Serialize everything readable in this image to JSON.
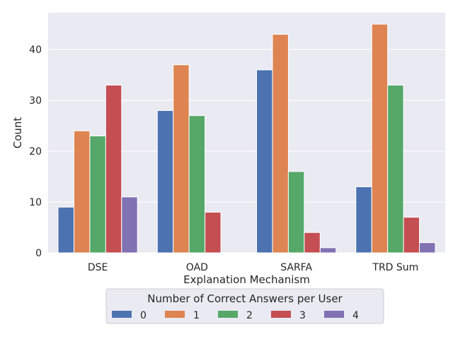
{
  "chart_data": {
    "type": "bar",
    "categories": [
      "DSE",
      "OAD",
      "SARFA",
      "TRD Sum"
    ],
    "series": [
      {
        "name": "0",
        "values": [
          9,
          28,
          36,
          13
        ]
      },
      {
        "name": "1",
        "values": [
          24,
          37,
          43,
          45
        ]
      },
      {
        "name": "2",
        "values": [
          23,
          27,
          16,
          33
        ]
      },
      {
        "name": "3",
        "values": [
          33,
          8,
          4,
          7
        ]
      },
      {
        "name": "4",
        "values": [
          11,
          0,
          1,
          2
        ]
      }
    ],
    "xlabel": "Explanation Mechanism",
    "ylabel": "Count",
    "ylim": [
      0,
      47.25
    ],
    "yticks": [
      0,
      10,
      20,
      30,
      40
    ],
    "grid": true,
    "legend_title": "Number of Correct Answers per User",
    "legend_position": "bottom-center"
  },
  "colors": {
    "background": "#eaeaf2",
    "grid": "#ffffff",
    "series": [
      "#4c72b0",
      "#dd8452",
      "#55a868",
      "#c44e52",
      "#8172b3"
    ]
  }
}
